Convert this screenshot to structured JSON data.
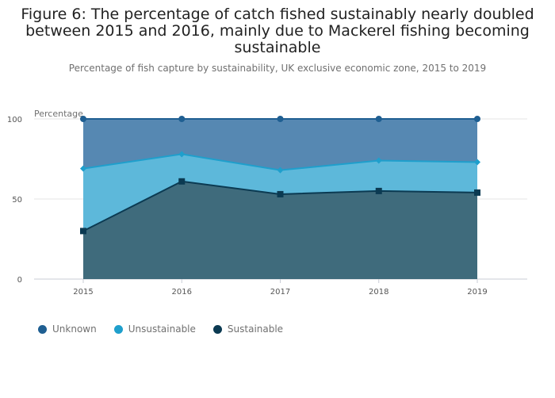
{
  "chart_data": {
    "type": "area",
    "stacked": true,
    "title": [
      "Figure 6: The percentage of catch fished sustainably nearly doubled",
      "between 2015 and 2016, mainly due to Mackerel fishing becoming",
      "sustainable"
    ],
    "subtitle": "Percentage of fish capture by sustainability, UK exclusive economic zone, 2015 to 2019",
    "ylabel": "Percentage",
    "xlabel": "",
    "x": [
      "2015",
      "2016",
      "2017",
      "2018",
      "2019"
    ],
    "ylim": [
      0,
      100
    ],
    "yticks": [
      0,
      50,
      100
    ],
    "grid": true,
    "legend_position": "bottom-left",
    "series": [
      {
        "name": "Sustainable",
        "values": [
          30,
          61,
          53,
          55,
          54
        ],
        "color": "#0b3a52",
        "fill": "#3f6b7c",
        "marker": "square"
      },
      {
        "name": "Unsustainable",
        "values": [
          39,
          17,
          15,
          19,
          19
        ],
        "color": "#1f9fcc",
        "fill": "#5db8da",
        "marker": "diamond"
      },
      {
        "name": "Unknown",
        "values": [
          31,
          22,
          32,
          26,
          27
        ],
        "color": "#1f5f92",
        "fill": "#5688b2",
        "marker": "circle"
      }
    ],
    "legend_order": [
      "Unknown",
      "Unsustainable",
      "Sustainable"
    ]
  }
}
